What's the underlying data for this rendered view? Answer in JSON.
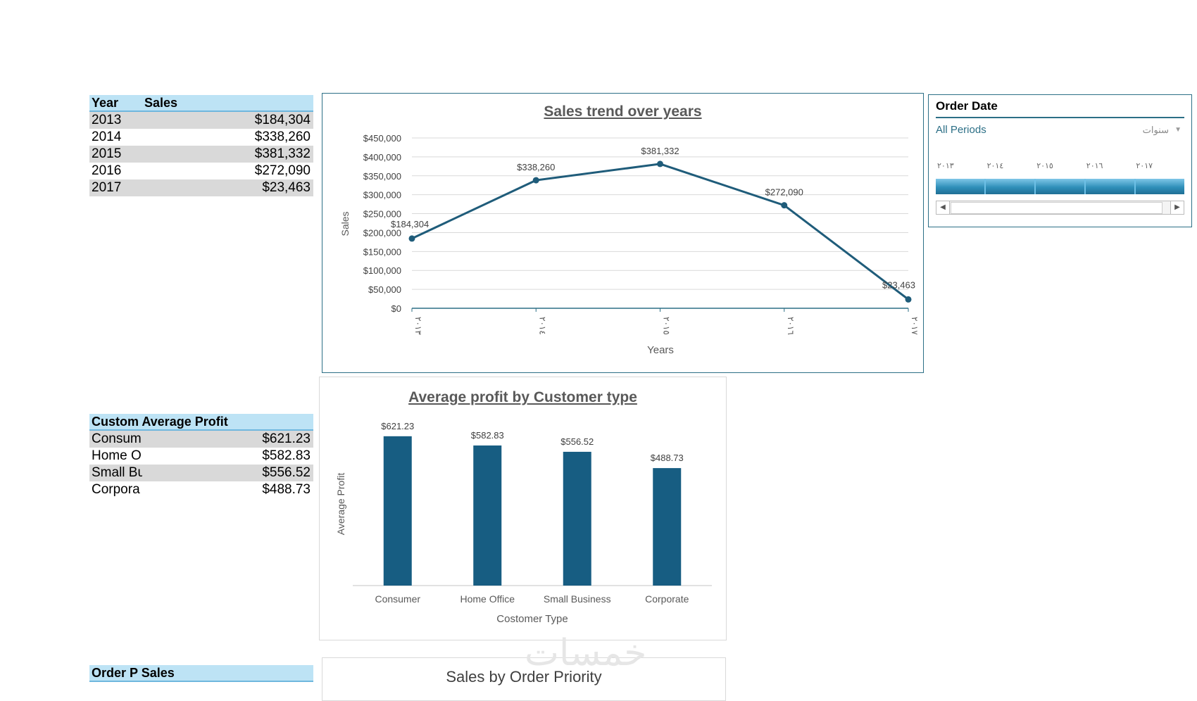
{
  "year_table": {
    "header": {
      "col1": "Year",
      "col2": "Sales"
    },
    "rows": [
      {
        "label": "2013",
        "value": "$184,304"
      },
      {
        "label": "2014",
        "value": "$338,260"
      },
      {
        "label": "2015",
        "value": "$381,332"
      },
      {
        "label": "2016",
        "value": "$272,090"
      },
      {
        "label": "2017",
        "value": "$23,463"
      }
    ]
  },
  "profit_table": {
    "header": "Custom Average Profit",
    "rows": [
      {
        "label": "Consum",
        "value": "$621.23"
      },
      {
        "label": "Home O",
        "value": "$582.83"
      },
      {
        "label": "Small Bu",
        "value": "$556.52"
      },
      {
        "label": "Corpora",
        "value": "$488.73"
      }
    ]
  },
  "priority_table": {
    "header": "Order P Sales"
  },
  "slicer": {
    "title": "Order Date",
    "all_periods": "All Periods",
    "level": "سنوات",
    "years": [
      "٢٠١٣",
      "٢٠١٤",
      "٢٠١٥",
      "٢٠١٦",
      "٢٠١٧"
    ]
  },
  "watermark": "خمسات",
  "colors": {
    "series": "#1f5c7a",
    "bar": "#175d82",
    "header_bg": "#bde3f5",
    "shade": "#d9d9d9"
  },
  "chart_data": [
    {
      "type": "line",
      "title": "Sales trend over years",
      "xlabel": "Years",
      "ylabel": "Sales",
      "categories": [
        "٢٠١٣",
        "٢٠١٤",
        "٢٠١٥",
        "٢٠١٦",
        "٢٠١٧"
      ],
      "values": [
        184304,
        338260,
        381332,
        272090,
        23463
      ],
      "data_labels": [
        "$184,304",
        "$338,260",
        "$381,332",
        "$272,090",
        "$23,463"
      ],
      "ylim": [
        0,
        450000
      ],
      "yticks": [
        "$0",
        "$50,000",
        "$100,000",
        "$150,000",
        "$200,000",
        "$250,000",
        "$300,000",
        "$350,000",
        "$400,000",
        "$450,000"
      ],
      "grid": true
    },
    {
      "type": "bar",
      "title": "Average profit by Customer type",
      "xlabel": "Costomer Type",
      "ylabel": "Average Profit",
      "categories": [
        "Consumer",
        "Home Office",
        "Small Business",
        "Corporate"
      ],
      "values": [
        621.23,
        582.83,
        556.52,
        488.73
      ],
      "data_labels": [
        "$621.23",
        "$582.83",
        "$556.52",
        "$488.73"
      ],
      "ylim": [
        0,
        650
      ]
    },
    {
      "type": "bar",
      "title": "Sales by Order Priority"
    }
  ]
}
